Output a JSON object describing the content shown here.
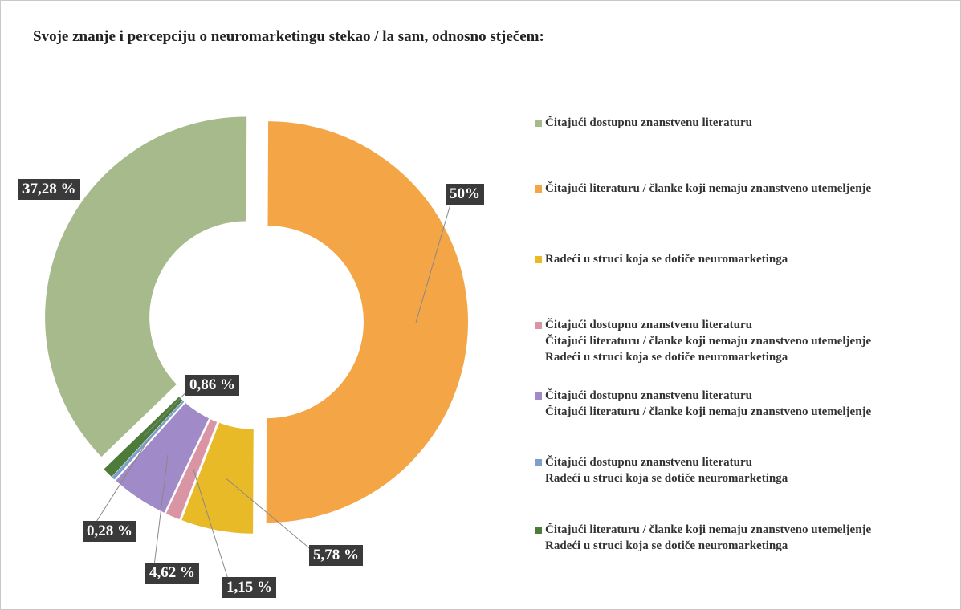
{
  "chart_data": {
    "type": "donut",
    "title": "Svoje znanje i percepciju o neuromarketingu stekao / la sam, odnosno stječem:",
    "categories": [
      "Čitajući dostupnu znanstvenu literaturu",
      "Čitajući literaturu / članke koji nemaju znanstveno utemeljenje",
      "Radeći u struci koja se dotiče neuromarketinga",
      "Čitajući dostupnu znanstvenu literaturu\nČitajući literaturu / članke koji nemaju znanstveno utemeljenje\nRadeći u struci koja se dotiče neuromarketinga",
      "Čitajući dostupnu znanstvenu literaturu\nČitajući literaturu / članke koji nemaju znanstveno utemeljenje",
      "Čitajući dostupnu znanstvenu literaturu\nRadeći u struci koja se dotiče neuromarketinga",
      "Čitajući literaturu / članke koji nemaju znanstveno utemeljenje\nRadeći u struci koja se dotiče neuromarketinga"
    ],
    "values": [
      37.28,
      50,
      5.78,
      1.15,
      4.62,
      0.28,
      0.86
    ],
    "value_labels": [
      "37,28 %",
      "50%",
      "5,78 %",
      "1,15 %",
      "4,62 %",
      "0,28 %",
      "0,86 %"
    ],
    "colors": [
      "#a6ba8c",
      "#f4a545",
      "#e9ba27",
      "#da95a4",
      "#a08ac8",
      "#7d9fca",
      "#4c7b3a"
    ],
    "legend": "right"
  }
}
